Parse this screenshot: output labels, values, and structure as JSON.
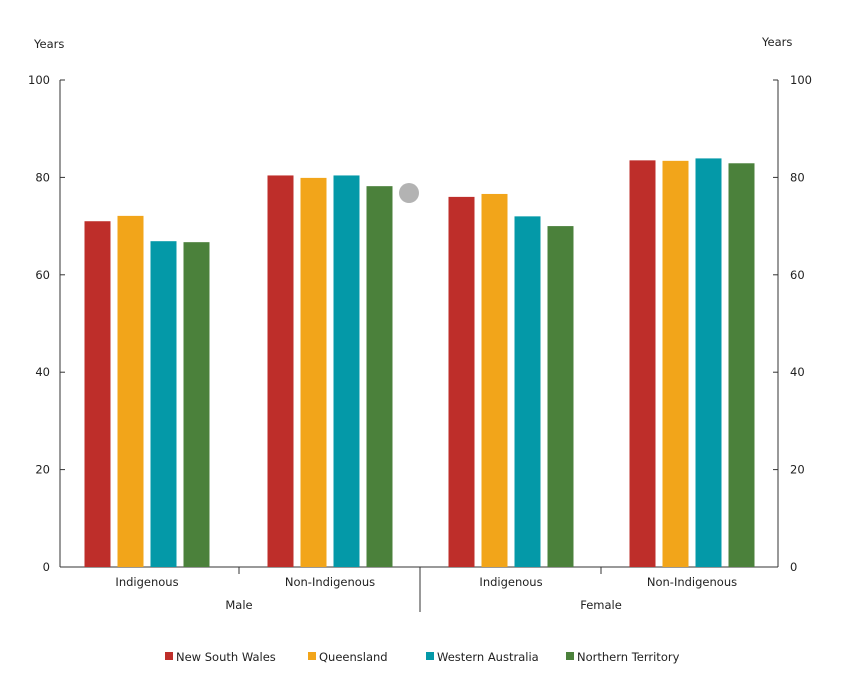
{
  "chart_data": {
    "type": "bar",
    "ylabel_left": "Years",
    "ylabel_right": "Years",
    "ylim": [
      0,
      100
    ],
    "yticks": [
      0,
      20,
      40,
      60,
      80,
      100
    ],
    "groups": [
      {
        "name": "Male",
        "categories": [
          "Indigenous",
          "Non-Indigenous"
        ]
      },
      {
        "name": "Female",
        "categories": [
          "Indigenous",
          "Non-Indigenous"
        ]
      }
    ],
    "categories": [
      "Indigenous",
      "Non-Indigenous",
      "Indigenous",
      "Non-Indigenous"
    ],
    "series": [
      {
        "name": "New South Wales",
        "color": "#BE2E2A",
        "values": [
          71.0,
          80.4,
          76.0,
          83.5
        ]
      },
      {
        "name": "Queensland",
        "color": "#F2A51A",
        "values": [
          72.1,
          79.9,
          76.6,
          83.4
        ]
      },
      {
        "name": "Western Australia",
        "color": "#0499A8",
        "values": [
          66.9,
          80.4,
          72.0,
          83.9
        ]
      },
      {
        "name": "Northern Territory",
        "color": "#4B813B",
        "values": [
          66.7,
          78.2,
          70.0,
          82.9
        ]
      }
    ],
    "legend": "bottom",
    "grid": false
  }
}
